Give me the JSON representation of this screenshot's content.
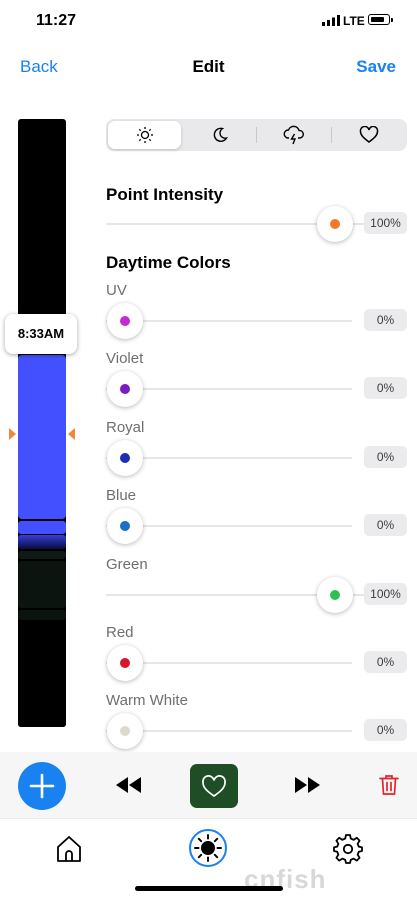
{
  "status_bar": {
    "time": "11:27",
    "network": "LTE"
  },
  "nav": {
    "back": "Back",
    "title": "Edit",
    "save": "Save"
  },
  "timeline": {
    "current_time": "8:33AM"
  },
  "weather_tabs": [
    {
      "icon": "sun-icon",
      "selected": true
    },
    {
      "icon": "moon-icon",
      "selected": false
    },
    {
      "icon": "storm-icon",
      "selected": false
    },
    {
      "icon": "heart-icon",
      "selected": false
    }
  ],
  "point_intensity": {
    "label": "Point Intensity",
    "value": 100,
    "value_label": "100%",
    "color": "#f07a2a"
  },
  "daytime_colors": {
    "label": "Daytime Colors",
    "channels": [
      {
        "name": "UV",
        "value": 0,
        "value_label": "0%",
        "color": "#c42bd1"
      },
      {
        "name": "Violet",
        "value": 0,
        "value_label": "0%",
        "color": "#7a1cc4"
      },
      {
        "name": "Royal",
        "value": 0,
        "value_label": "0%",
        "color": "#1a2fb5"
      },
      {
        "name": "Blue",
        "value": 0,
        "value_label": "0%",
        "color": "#1a6fc7"
      },
      {
        "name": "Green",
        "value": 100,
        "value_label": "100%",
        "color": "#2ec052"
      },
      {
        "name": "Red",
        "value": 0,
        "value_label": "0%",
        "color": "#d21a2a"
      },
      {
        "name": "Warm White",
        "value": 0,
        "value_label": "0%",
        "color": "#dcdacb"
      }
    ]
  },
  "toolbar": {
    "add": "plus-icon",
    "rewind": "rewind-icon",
    "favorite": "heart-icon",
    "forward": "fast-forward-icon",
    "delete": "trash-icon"
  },
  "tabbar": {
    "tabs": [
      "home-icon",
      "sun-icon",
      "gear-icon"
    ],
    "active": 1
  },
  "watermark": "cnfish"
}
